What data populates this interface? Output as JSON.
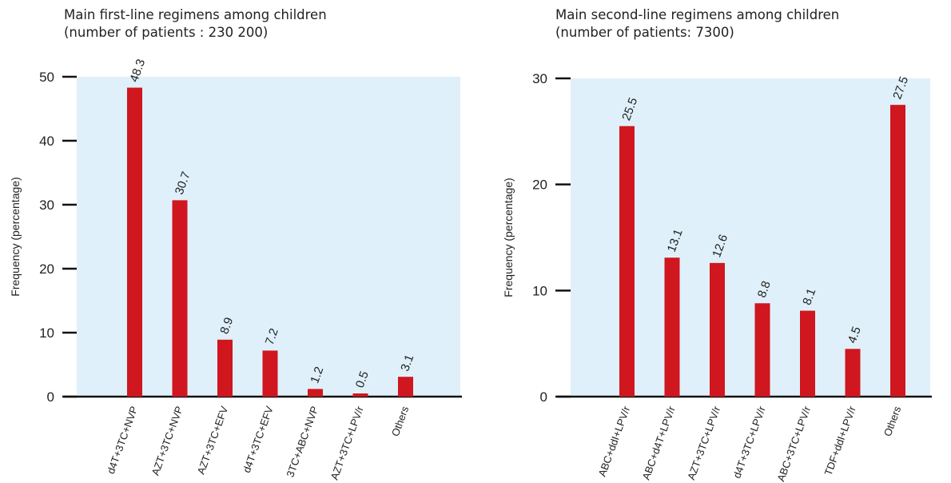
{
  "chart_data": [
    {
      "type": "bar",
      "title_line1": "Main first-line regimens among children",
      "title_line2": "(number of patients : 230 200)",
      "ylabel": "Frequency (percentage)",
      "ylim": [
        0,
        50
      ],
      "yticks": [
        0,
        10,
        20,
        30,
        40,
        50
      ],
      "categories": [
        "d4T+3TC+NVP",
        "AZT+3TC+NVP",
        "AZT+3TC+EFV",
        "d4T+3TC+EFV",
        "3TC+ABC+NVP",
        "AZT+3TC+LPV/r",
        "Others"
      ],
      "values": [
        48.3,
        30.7,
        8.9,
        7.2,
        1.2,
        0.5,
        3.1
      ],
      "value_labels": [
        "48.3",
        "30.7",
        "8.9",
        "7.2",
        "1.2",
        "0.5",
        "3.1"
      ],
      "bar_color": "#d0161f",
      "background_color": "#dff0fa"
    },
    {
      "type": "bar",
      "title_line1": "Main second-line regimens among children",
      "title_line2": "(number of patients: 7300)",
      "ylabel": "Frequency (percentage)",
      "ylim": [
        0,
        30
      ],
      "yticks": [
        0,
        10,
        20,
        30
      ],
      "categories": [
        "ABC+ddI+LPV/r",
        "ABC+d4T+LPV/r",
        "AZT+3TC+LPV/r",
        "d4T+3TC+LPV/r",
        "ABC+3TC+LPV/r",
        "TDF+ddI+LPV/r",
        "Others"
      ],
      "values": [
        25.5,
        13.1,
        12.6,
        8.8,
        8.1,
        4.5,
        27.5
      ],
      "value_labels": [
        "25.5",
        "13.1",
        "12.6",
        "8.8",
        "8.1",
        "4.5",
        "27.5"
      ],
      "bar_color": "#d0161f",
      "background_color": "#dff0fa"
    }
  ]
}
